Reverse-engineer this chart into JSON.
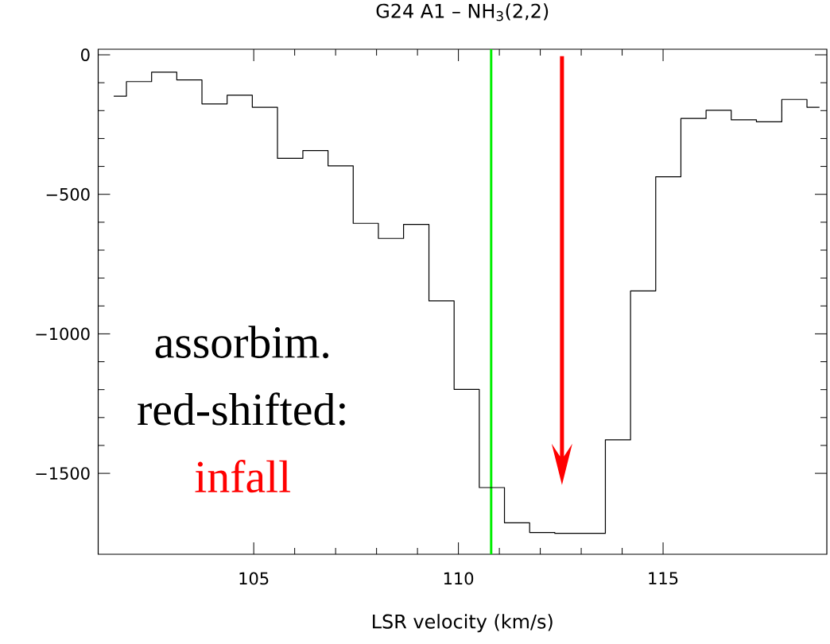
{
  "chart_data": {
    "type": "step",
    "title": "G24 A1 – NH$_{3}$(2,2)",
    "xlabel": "LSR velocity (km/s)",
    "x": [
      101.58,
      102.2,
      102.81,
      103.43,
      104.04,
      104.66,
      105.27,
      105.89,
      106.51,
      107.12,
      107.74,
      108.35,
      108.97,
      109.59,
      110.2,
      110.82,
      111.43,
      112.05,
      112.66,
      113.28,
      113.9,
      114.51,
      115.13,
      115.74,
      116.36,
      116.97,
      117.59,
      118.21,
      118.82
    ],
    "series": [
      {
        "color": "#000000",
        "values": [
          -148,
          -96,
          -62,
          -90,
          -176,
          -145,
          -188,
          -371,
          -343,
          -398,
          -604,
          -658,
          -608,
          -882,
          -1199,
          -1551,
          -1677,
          -1712,
          -1715,
          -1715,
          -1380,
          -846,
          -437,
          -228,
          -199,
          -233,
          -240,
          -160,
          -188
        ]
      }
    ],
    "xlim": [
      101.2,
      119.0
    ],
    "ylim": [
      -1790,
      20
    ],
    "xticks": [
      105,
      110,
      115
    ],
    "yticks": [
      {
        "value": 0,
        "label": "0"
      },
      {
        "value": -500,
        "label": "−500"
      },
      {
        "value": -1000,
        "label": "−1000"
      },
      {
        "value": -1500,
        "label": "−1500"
      }
    ],
    "ref_lines": [
      {
        "axis": "x",
        "value": 110.8,
        "color": "#00ee00"
      }
    ],
    "annotations": [
      "assorbim.",
      "red-shifted:",
      "infall"
    ],
    "grid": false
  }
}
